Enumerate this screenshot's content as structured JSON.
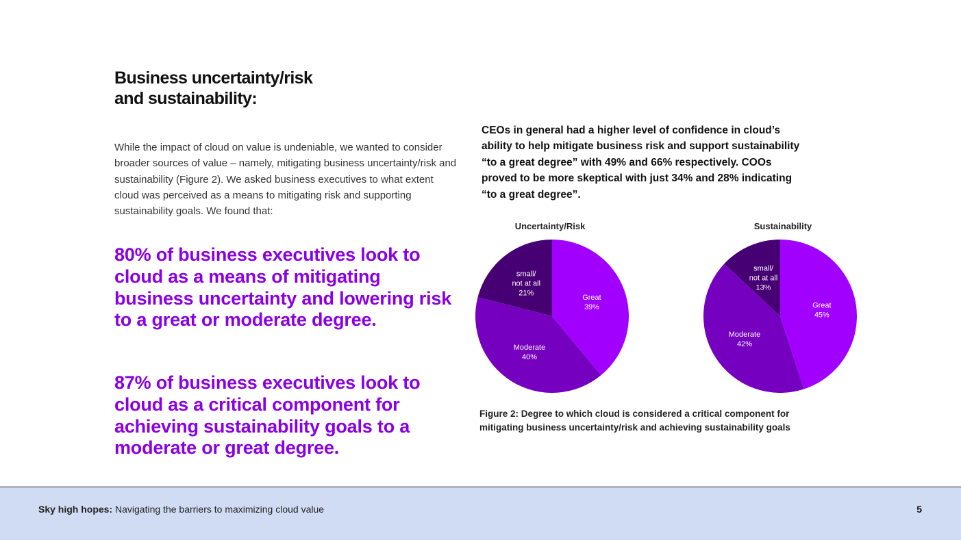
{
  "section_title": {
    "line1": "Business uncertainty/risk",
    "line2": "and sustainability:"
  },
  "intro_text": "While the impact of cloud on value is undeniable, we wanted to consider broader sources of value – namely, mitigating business uncertainty/risk and sustainability (Figure 2). We asked business executives to what extent cloud was perceived as a means to mitigating risk and supporting sustainability goals. We found that:",
  "stats": {
    "stat1": "80% of business executives look to cloud as a means of mitigating business uncertainty and lowering risk to a great or moderate degree.",
    "stat2": "87% of business executives look to cloud as a critical component for achieving sustainability goals to a moderate or great degree."
  },
  "ceo_text": "CEOs in general had a higher level of confidence in cloud’s ability to help mitigate business risk and support sustainability “to a great degree” with 49% and 66% respectively. COOs proved to be more skeptical with just 34% and 28% indicating “to a great degree”.",
  "chart_data": [
    {
      "type": "pie",
      "title": "Uncertainty/Risk",
      "slices": [
        {
          "label": "Great",
          "value": 39,
          "display": "39%",
          "color": "#a100ff"
        },
        {
          "label": "Moderate",
          "value": 40,
          "display": "40%",
          "color": "#7500c0"
        },
        {
          "label": "small/\nnot at all",
          "value": 21,
          "display": "21%",
          "color": "#460073"
        }
      ]
    },
    {
      "type": "pie",
      "title": "Sustainability",
      "slices": [
        {
          "label": "Great",
          "value": 45,
          "display": "45%",
          "color": "#a100ff"
        },
        {
          "label": "Moderate",
          "value": 42,
          "display": "42%",
          "color": "#7500c0"
        },
        {
          "label": "small/\nnot at all",
          "value": 13,
          "display": "13%",
          "color": "#460073"
        }
      ]
    }
  ],
  "figure_caption": {
    "line1": "Figure 2: Degree to which cloud is considered a critical component for",
    "line2": "mitigating business uncertainty/risk and achieving sustainability goals"
  },
  "footer": {
    "title_bold": "Sky high hopes:",
    "title_rest": " Navigating the barriers to maximizing cloud value",
    "page_number": "5"
  },
  "colors": {
    "accent_purple": "#8a00e6",
    "footer_bg": "#d0dcf3"
  }
}
